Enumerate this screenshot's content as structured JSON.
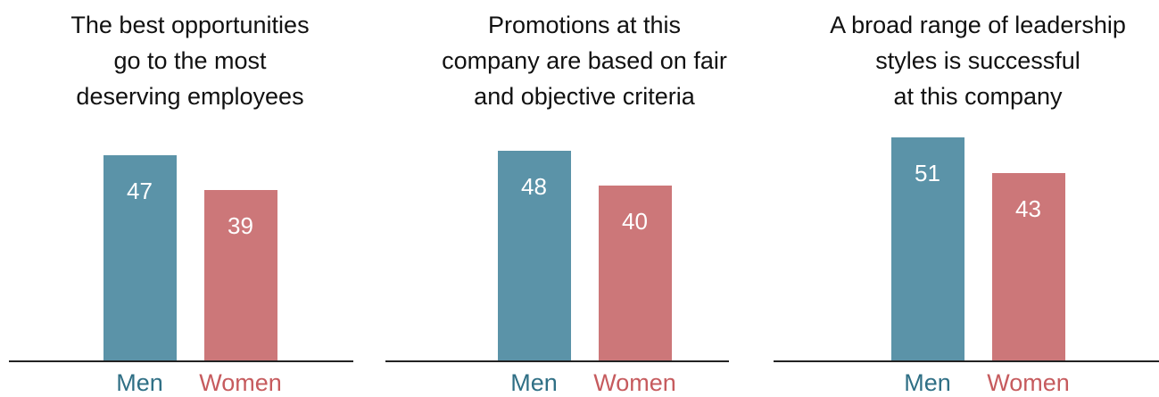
{
  "colors": {
    "men": "#5b93a8",
    "women": "#cc7779",
    "men_label": "#2f6f85",
    "women_label": "#c65b5e"
  },
  "chart_data": [
    {
      "type": "bar",
      "title": "The best opportunities go to the most deserving employees",
      "title_lines": [
        "The best opportunities",
        "go to the most",
        "deserving employees"
      ],
      "categories": [
        "Men",
        "Women"
      ],
      "values": [
        47,
        39
      ],
      "ylim": [
        0,
        60
      ],
      "grid": false,
      "legend": "none"
    },
    {
      "type": "bar",
      "title": "Promotions at this company are based on fair and objective criteria",
      "title_lines": [
        "Promotions at this",
        "company are based on fair",
        "and objective criteria"
      ],
      "categories": [
        "Men",
        "Women"
      ],
      "values": [
        48,
        40
      ],
      "ylim": [
        0,
        60
      ],
      "grid": false,
      "legend": "none"
    },
    {
      "type": "bar",
      "title": "A broad range of leadership styles is successful at this company",
      "title_lines": [
        "A broad range of leadership",
        "styles is successful",
        "at this company"
      ],
      "categories": [
        "Men",
        "Women"
      ],
      "values": [
        51,
        43
      ],
      "ylim": [
        0,
        60
      ],
      "grid": false,
      "legend": "none"
    }
  ]
}
